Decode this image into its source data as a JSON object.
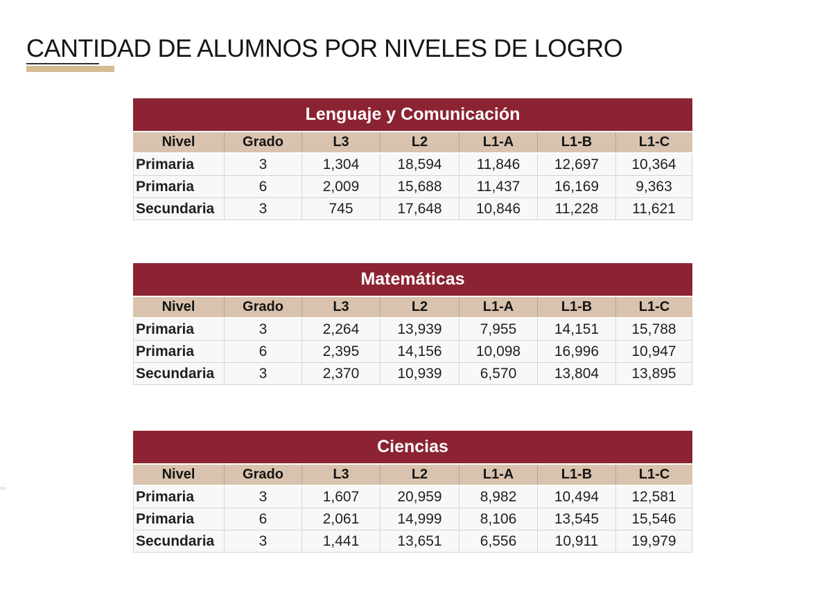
{
  "page": {
    "title": "CANTIDAD DE ALUMNOS POR NIVELES DE LOGRO"
  },
  "colors": {
    "banner_maroon": "#8B2332",
    "header_tan": "#D9C3AE",
    "title_accent_tan": "#D5BC95",
    "row_background": "#F8F8F8",
    "grid_border": "#D4D4D4"
  },
  "columns": [
    "Nivel",
    "Grado",
    "L3",
    "L2",
    "L1-A",
    "L1-B",
    "L1-C"
  ],
  "tables": [
    {
      "title": "Lenguaje y Comunicación",
      "rows": [
        [
          "Primaria",
          "3",
          "1,304",
          "18,594",
          "11,846",
          "12,697",
          "10,364"
        ],
        [
          "Primaria",
          "6",
          "2,009",
          "15,688",
          "11,437",
          "16,169",
          "9,363"
        ],
        [
          "Secundaria",
          "3",
          "745",
          "17,648",
          "10,846",
          "11,228",
          "11,621"
        ]
      ]
    },
    {
      "title": "Matemáticas",
      "rows": [
        [
          "Primaria",
          "3",
          "2,264",
          "13,939",
          "7,955",
          "14,151",
          "15,788"
        ],
        [
          "Primaria",
          "6",
          "2,395",
          "14,156",
          "10,098",
          "16,996",
          "10,947"
        ],
        [
          "Secundaria",
          "3",
          "2,370",
          "10,939",
          "6,570",
          "13,804",
          "13,895"
        ]
      ]
    },
    {
      "title": "Ciencias",
      "rows": [
        [
          "Primaria",
          "3",
          "1,607",
          "20,959",
          "8,982",
          "10,494",
          "12,581"
        ],
        [
          "Primaria",
          "6",
          "2,061",
          "14,999",
          "8,106",
          "13,545",
          "15,546"
        ],
        [
          "Secundaria",
          "3",
          "1,441",
          "13,651",
          "6,556",
          "10,911",
          "19,979"
        ]
      ]
    }
  ]
}
